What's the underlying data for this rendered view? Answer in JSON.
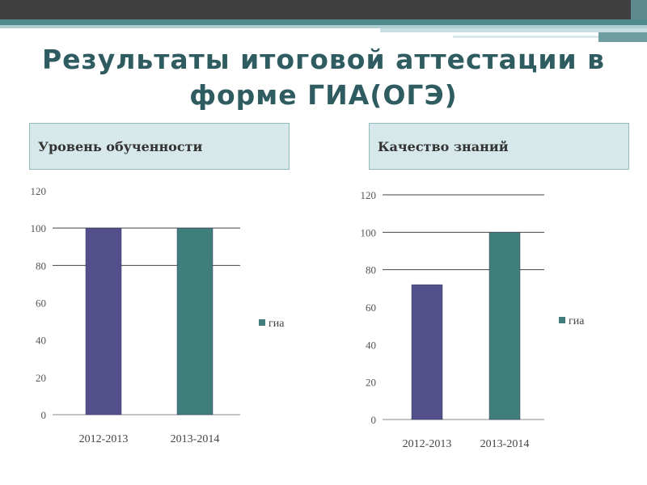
{
  "title": "Результаты итоговой аттестации в\nформе ГИА(ОГЭ)",
  "panels": {
    "left": "Уровень обученности",
    "right": "Качество знаний"
  },
  "colors": {
    "series_a": "#524f8a",
    "series_b": "#3f7e7d",
    "title": "#2f5c60"
  },
  "chart_data": [
    {
      "type": "bar",
      "categories": [
        "2012-2013",
        "2013-2014"
      ],
      "series": [
        {
          "name": "гиа",
          "values": [
            100,
            100
          ]
        }
      ],
      "ylim": [
        0,
        120
      ],
      "yticks": [
        "0",
        "20",
        "40",
        "60",
        "80",
        "100",
        "120"
      ],
      "grid": true,
      "legend": "right"
    },
    {
      "type": "bar",
      "categories": [
        "2012-2013",
        "2013-2014"
      ],
      "series": [
        {
          "name": "гиа",
          "values": [
            72,
            100
          ]
        }
      ],
      "ylim": [
        0,
        120
      ],
      "yticks": [
        "0",
        "20",
        "40",
        "60",
        "80",
        "100",
        "120"
      ],
      "grid": true,
      "legend": "right"
    }
  ]
}
